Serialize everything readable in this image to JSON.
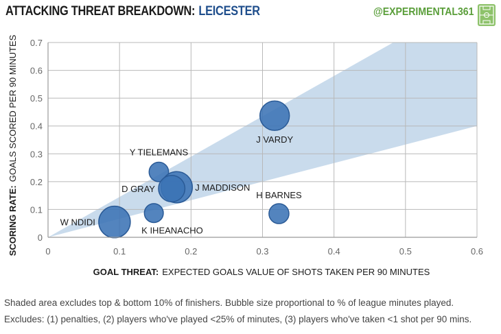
{
  "header": {
    "title_prefix": "ATTACKING THREAT BREAKDOWN:",
    "title_team": "LEICESTER",
    "handle": "@EXPERIMENTAL361",
    "colors": {
      "title": "#1a1a1a",
      "team": "#1f4e8c",
      "handle": "#5a9e3a"
    }
  },
  "chart_data": {
    "type": "scatter",
    "xlabel_bold": "GOAL THREAT:",
    "xlabel_rest": "EXPECTED GOALS VALUE OF SHOTS TAKEN PER 90 MINUTES",
    "ylabel_bold": "SCORING RATE:",
    "ylabel_rest": "GOALS SCORED PER 90 MINUTES",
    "xlim": [
      0,
      0.6
    ],
    "ylim": [
      0,
      0.7
    ],
    "xticks": [
      "0",
      "0.1",
      "0.2",
      "0.3",
      "0.4",
      "0.5",
      "0.6"
    ],
    "yticks": [
      "0",
      "0.1",
      "0.2",
      "0.3",
      "0.4",
      "0.5",
      "0.6",
      "0.7"
    ],
    "band": {
      "lower_slope": 0.667,
      "upper_slope": 1.45,
      "color": "#c9dbec"
    },
    "bubble_color": "#3b73b5",
    "players": [
      {
        "name": "J VARDY",
        "x": 0.317,
        "y": 0.437,
        "size": 0.87,
        "label_pos": "below"
      },
      {
        "name": "Y TIELEMANS",
        "x": 0.155,
        "y": 0.235,
        "size": 0.38,
        "label_pos": "above-left"
      },
      {
        "name": "J MADDISON",
        "x": 0.18,
        "y": 0.18,
        "size": 0.98,
        "label_pos": "right"
      },
      {
        "name": "D GRAY",
        "x": 0.173,
        "y": 0.175,
        "size": 0.7,
        "label_pos": "left"
      },
      {
        "name": "H BARNES",
        "x": 0.323,
        "y": 0.085,
        "size": 0.4,
        "label_pos": "above"
      },
      {
        "name": "K IHEANACHO",
        "x": 0.148,
        "y": 0.087,
        "size": 0.36,
        "label_pos": "below-right"
      },
      {
        "name": "W NDIDI",
        "x": 0.093,
        "y": 0.055,
        "size": 1.0,
        "label_pos": "left"
      }
    ]
  },
  "footnotes": {
    "line1": "Shaded area excludes top & bottom 10% of finishers. Bubble size proportional to % of league minutes played.",
    "line2": "Excludes: (1) penalties, (2) players who've played <25% of minutes, (3) players who've taken <1 shot per 90 mins."
  }
}
